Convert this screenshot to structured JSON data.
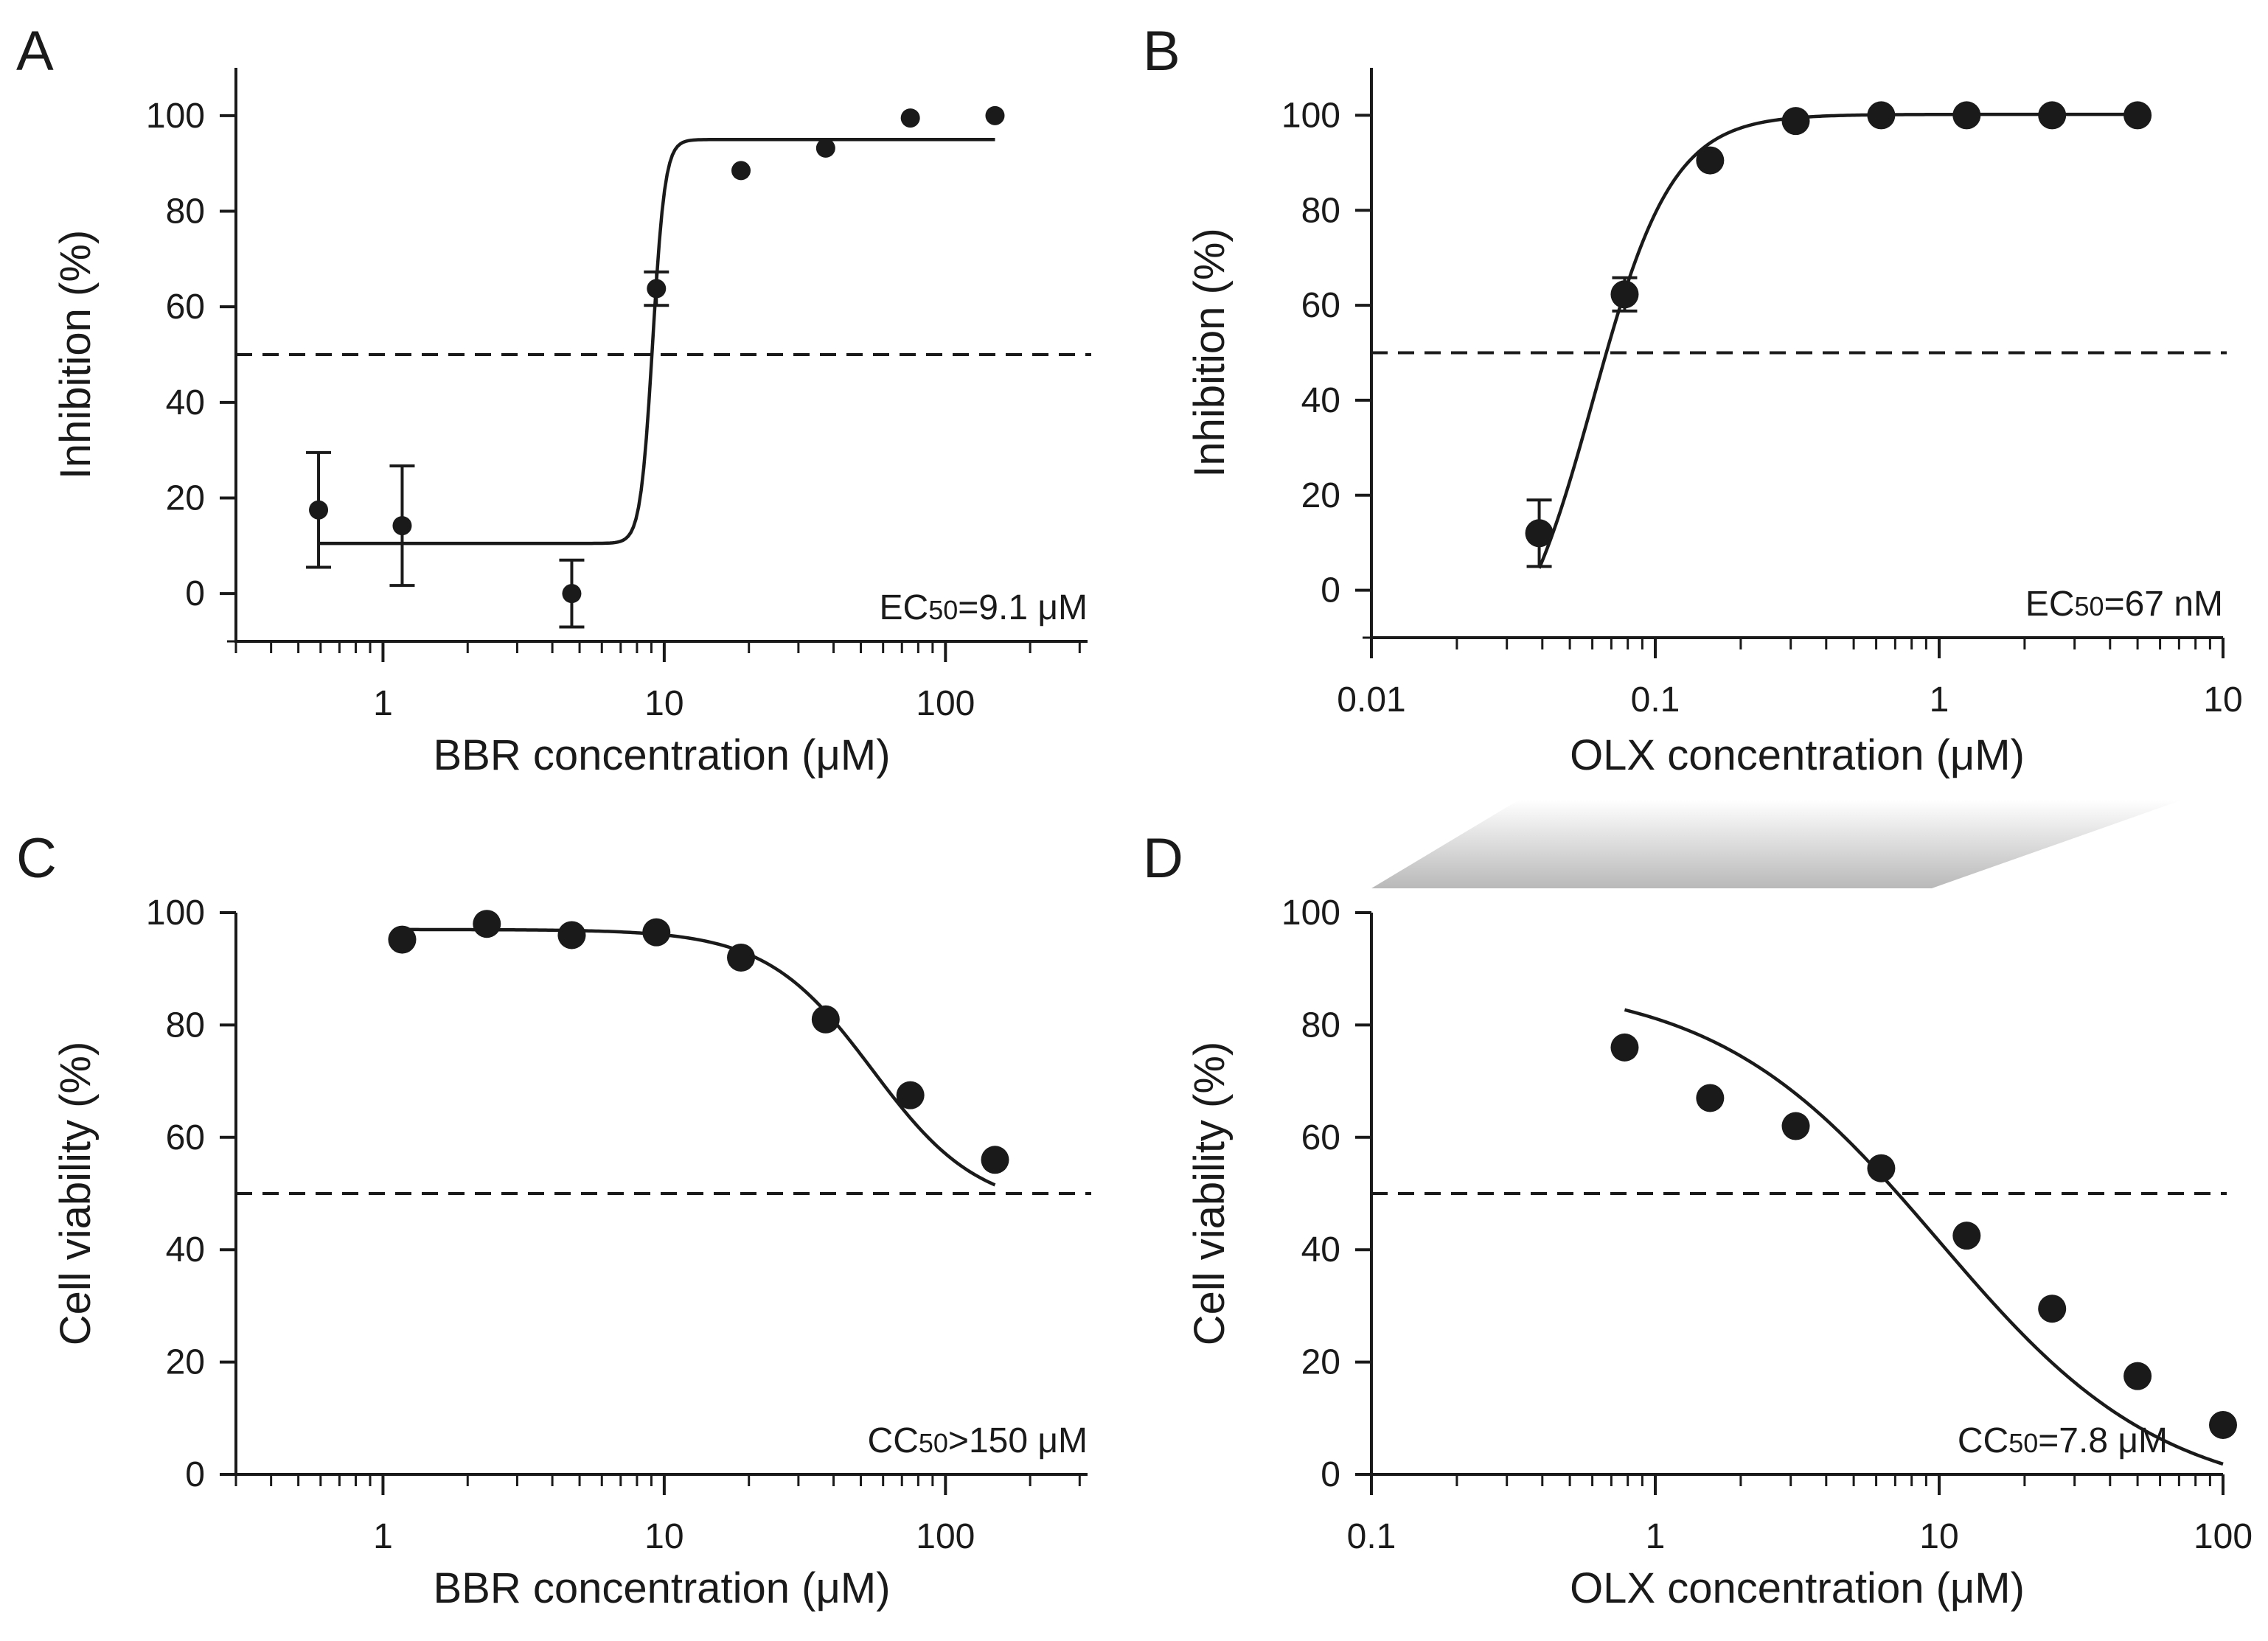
{
  "figure": {
    "connector_color": "#b9b9b9",
    "ink_color": "#1a1a1a"
  },
  "chart_data": [
    {
      "panel": "A",
      "type": "scatter",
      "xscale": "log",
      "xlim": [
        0.3,
        320
      ],
      "ylim": [
        -10,
        110
      ],
      "xlabel": "BBR concentration (μM)",
      "ylabel": "Inhibition (%)",
      "xticks": [
        1,
        10,
        100
      ],
      "xtick_labels": [
        "1",
        "10",
        "100"
      ],
      "yticks": [
        0,
        20,
        40,
        60,
        80,
        100
      ],
      "ytick_labels": [
        "0",
        "20",
        "40",
        "60",
        "80",
        "100"
      ],
      "reference_line_y": 50,
      "annotation": {
        "prefix": "EC",
        "sub": "50",
        "suffix": "=9.1 μM",
        "position": "bottom-right"
      },
      "marker": "small",
      "points": [
        {
          "x": 0.59,
          "y": 17.5,
          "err": 12
        },
        {
          "x": 1.17,
          "y": 14.2,
          "err": 12.5
        },
        {
          "x": 4.69,
          "y": 0,
          "err": 7
        },
        {
          "x": 9.38,
          "y": 63.8,
          "err": 3.5
        },
        {
          "x": 18.75,
          "y": 88.5,
          "err": null
        },
        {
          "x": 37.5,
          "y": 93.2,
          "err": null
        },
        {
          "x": 75,
          "y": 99.5,
          "err": null
        },
        {
          "x": 150,
          "y": 100,
          "err": null
        }
      ],
      "fit": {
        "bottom": 10.5,
        "top": 95,
        "ec": 9.1,
        "hill": 20,
        "slope_sign": 1,
        "x_range": [
          0.59,
          150
        ]
      }
    },
    {
      "panel": "B",
      "type": "scatter",
      "xscale": "log",
      "xlim": [
        0.01,
        10
      ],
      "ylim": [
        -10,
        110
      ],
      "xlabel": "OLX concentration (μM)",
      "ylabel": "Inhibition (%)",
      "xticks": [
        0.01,
        0.1,
        1,
        10
      ],
      "xtick_labels": [
        "0.01",
        "0.1",
        "1",
        "10"
      ],
      "yticks": [
        0,
        20,
        40,
        60,
        80,
        100
      ],
      "ytick_labels": [
        "0",
        "20",
        "40",
        "60",
        "80",
        "100"
      ],
      "reference_line_y": 50,
      "annotation": {
        "prefix": "EC",
        "sub": "50",
        "suffix": "=67 nM",
        "position": "bottom-right"
      },
      "marker": "large",
      "points": [
        {
          "x": 0.039,
          "y": 12,
          "err": 7
        },
        {
          "x": 0.078,
          "y": 62.3,
          "err": 3.5
        },
        {
          "x": 0.156,
          "y": 90.5,
          "err": null
        },
        {
          "x": 0.3125,
          "y": 98.8,
          "err": null
        },
        {
          "x": 0.625,
          "y": 100,
          "err": null
        },
        {
          "x": 1.25,
          "y": 100,
          "err": null
        },
        {
          "x": 2.5,
          "y": 100,
          "err": null
        },
        {
          "x": 5,
          "y": 100,
          "err": null
        }
      ],
      "fit": {
        "bottom": -20,
        "top": 100.2,
        "ec": 0.0604,
        "hill": 3.1,
        "slope_sign": 1,
        "x_range": [
          0.039,
          5
        ]
      }
    },
    {
      "panel": "C",
      "type": "scatter",
      "xscale": "log",
      "xlim": [
        0.3,
        320
      ],
      "ylim": [
        0,
        100
      ],
      "xlabel": "BBR concentration (μM)",
      "ylabel": "Cell viability (%)",
      "xticks": [
        1,
        10,
        100
      ],
      "xtick_labels": [
        "1",
        "10",
        "100"
      ],
      "yticks": [
        0,
        20,
        40,
        60,
        80,
        100
      ],
      "ytick_labels": [
        "0",
        "20",
        "40",
        "60",
        "80",
        "100"
      ],
      "reference_line_y": 50,
      "annotation": {
        "prefix": "CC",
        "sub": "50",
        "suffix": ">150 μM",
        "position": "bottom-right"
      },
      "marker": "large",
      "points": [
        {
          "x": 1.17,
          "y": 95.2,
          "err": null
        },
        {
          "x": 2.34,
          "y": 98,
          "err": null
        },
        {
          "x": 4.69,
          "y": 96,
          "err": null
        },
        {
          "x": 9.38,
          "y": 96.5,
          "err": null
        },
        {
          "x": 18.75,
          "y": 92,
          "err": null
        },
        {
          "x": 37.5,
          "y": 81,
          "err": null
        },
        {
          "x": 75,
          "y": 67.5,
          "err": null
        },
        {
          "x": 150,
          "y": 56,
          "err": null
        }
      ],
      "fit": {
        "bottom": 47,
        "top": 97,
        "ec": 55,
        "hill": 2.3,
        "slope_sign": -1,
        "x_range": [
          1.17,
          150
        ]
      }
    },
    {
      "panel": "D",
      "type": "scatter",
      "xscale": "log",
      "xlim": [
        0.1,
        100
      ],
      "ylim": [
        0,
        100
      ],
      "xlabel": "OLX concentration (μM)",
      "ylabel": "Cell viability (%)",
      "xticks": [
        0.1,
        1,
        10,
        100
      ],
      "xtick_labels": [
        "0.1",
        "1",
        "10",
        "100"
      ],
      "yticks": [
        0,
        20,
        40,
        60,
        80,
        100
      ],
      "ytick_labels": [
        "0",
        "20",
        "40",
        "60",
        "80",
        "100"
      ],
      "reference_line_y": 50,
      "annotation": {
        "prefix": "CC",
        "sub": "50",
        "suffix": "=7.8 μM",
        "position": "bottom-center-right"
      },
      "marker": "large",
      "points": [
        {
          "x": 0.78,
          "y": 76,
          "err": null
        },
        {
          "x": 1.56,
          "y": 67,
          "err": null
        },
        {
          "x": 3.125,
          "y": 62,
          "err": null
        },
        {
          "x": 6.25,
          "y": 54.5,
          "err": null
        },
        {
          "x": 12.5,
          "y": 42.5,
          "err": null
        },
        {
          "x": 25,
          "y": 29.5,
          "err": null
        },
        {
          "x": 50,
          "y": 17.5,
          "err": null
        },
        {
          "x": 100,
          "y": 8.8,
          "err": null
        }
      ],
      "fit": {
        "bottom": -5,
        "top": 88,
        "ec": 10,
        "hill": 1.1,
        "slope_sign": -1,
        "x_range": [
          0.78,
          100
        ]
      }
    }
  ]
}
